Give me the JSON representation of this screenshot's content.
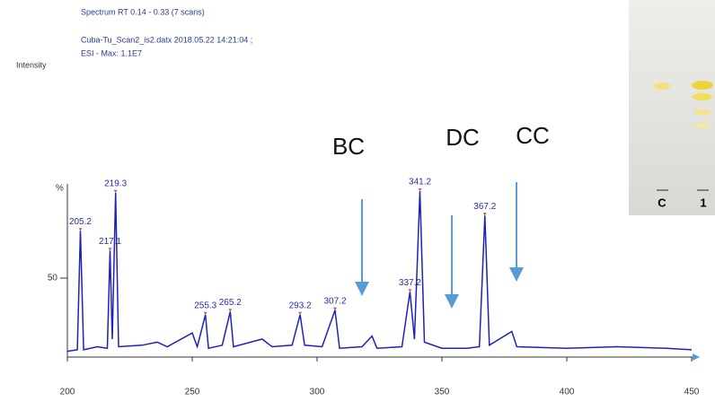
{
  "header": {
    "title": "Spectrum RT 0.14 - 0.33 (7 scans)",
    "file": "Cuba-Tu_Scan2_is2.datx 2018.05.22 14:21:04 ;",
    "max": "ESI - Max: 1.1E7",
    "y_label": "Intensity"
  },
  "chart_data": {
    "type": "line",
    "y_axis_label": "%",
    "color": "#1f22b8",
    "x": [
      200,
      204,
      205.2,
      206.5,
      212,
      216,
      217.1,
      218,
      219.3,
      220.5,
      230,
      236,
      240,
      250,
      252,
      255.3,
      256.5,
      262,
      265.2,
      266.5,
      278,
      282,
      290,
      293.2,
      295,
      302,
      307.2,
      309,
      318,
      322,
      324,
      334,
      337.2,
      339,
      341.2,
      343,
      350,
      360,
      365,
      367.2,
      369,
      378,
      380,
      400,
      420,
      440,
      450
    ],
    "values": [
      2,
      3,
      81,
      3,
      5,
      4,
      68,
      10,
      106,
      5,
      6,
      8,
      5,
      14,
      5,
      26,
      4,
      6,
      28,
      5,
      10,
      5,
      6,
      26,
      6,
      5,
      29,
      4,
      5,
      12,
      4,
      5,
      41,
      10,
      107,
      8,
      4,
      4,
      5,
      91,
      6,
      15,
      5,
      4,
      5,
      4,
      3
    ],
    "peaks": [
      {
        "x": 205.2,
        "value": 81
      },
      {
        "x": 217.1,
        "value": 68
      },
      {
        "x": 219.3,
        "value": 106
      },
      {
        "x": 255.3,
        "value": 26
      },
      {
        "x": 265.2,
        "value": 28
      },
      {
        "x": 293.2,
        "value": 26
      },
      {
        "x": 307.2,
        "value": 29
      },
      {
        "x": 337.2,
        "value": 41
      },
      {
        "x": 341.2,
        "value": 107
      },
      {
        "x": 367.2,
        "value": 91
      }
    ],
    "annotations": [
      "BC",
      "DC",
      "CC"
    ],
    "xlim": [
      200,
      450
    ],
    "xticks": [
      200,
      250,
      300,
      350,
      400,
      450
    ],
    "ylim": [
      0,
      110
    ],
    "yticks": [
      50
    ]
  },
  "inset": {
    "lane_labels": [
      "C",
      "1"
    ]
  }
}
